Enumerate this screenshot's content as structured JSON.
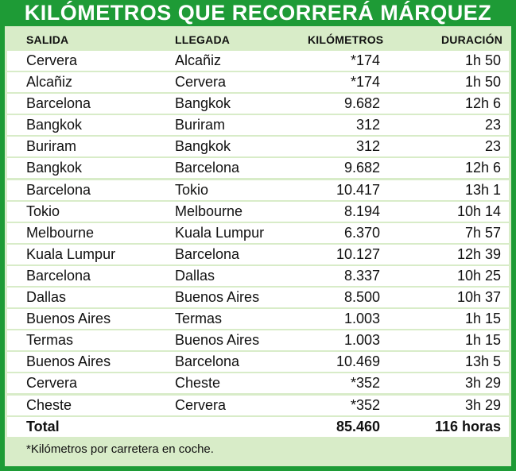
{
  "title": "KILÓMETROS QUE RECORRERÁ MÁRQUEZ",
  "headers": [
    "Salida",
    "Llegada",
    "Kilómetros",
    "Duración"
  ],
  "rows": [
    [
      "Cervera",
      "Alcañiz",
      "*174",
      "1h 50"
    ],
    [
      "Alcañiz",
      "Cervera",
      "*174",
      "1h 50"
    ],
    [
      "Barcelona",
      "Bangkok",
      "9.682",
      "12h 6"
    ],
    [
      "Bangkok",
      "Buriram",
      "312",
      "23"
    ],
    [
      "Buriram",
      "Bangkok",
      "312",
      "23"
    ],
    [
      "Bangkok",
      "Barcelona",
      "9.682",
      "12h 6"
    ],
    [
      "Barcelona",
      "Tokio",
      "10.417",
      "13h 1"
    ],
    [
      "Tokio",
      "Melbourne",
      "8.194",
      "10h 14"
    ],
    [
      "Melbourne",
      "Kuala Lumpur",
      "6.370",
      "7h 57"
    ],
    [
      "Kuala Lumpur",
      "Barcelona",
      "10.127",
      "12h 39"
    ],
    [
      "Barcelona",
      "Dallas",
      "8.337",
      "10h 25"
    ],
    [
      "Dallas",
      "Buenos Aires",
      "8.500",
      "10h 37"
    ],
    [
      "Buenos Aires",
      "Termas",
      "1.003",
      "1h 15"
    ],
    [
      "Termas",
      "Buenos Aires",
      "1.003",
      "1h 15"
    ],
    [
      "Buenos Aires",
      "Barcelona",
      "10.469",
      "13h 5"
    ],
    [
      "Cervera",
      "Cheste",
      "*352",
      "3h 29"
    ],
    [
      "Cheste",
      "Cervera",
      "*352",
      "3h 29"
    ]
  ],
  "total": {
    "label": "Total",
    "km": "85.460",
    "duration": "116 horas"
  },
  "footnote": "*Kilómetros por carretera en coche."
}
